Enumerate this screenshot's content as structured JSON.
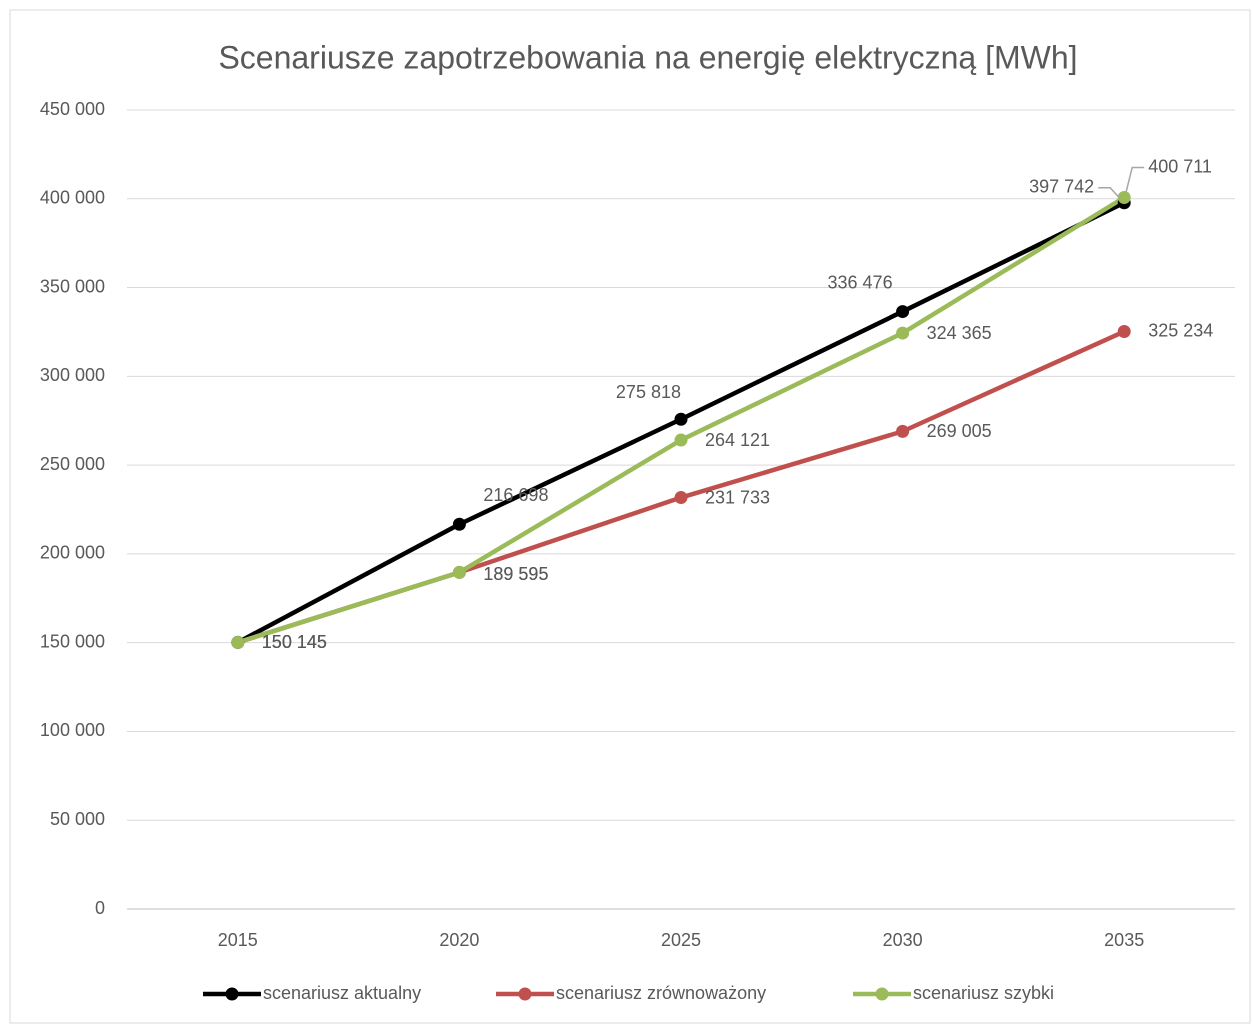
{
  "chart_data": {
    "type": "line",
    "title": "Scenariusze zapotrzebowania na energię elektryczną [MWh]",
    "categories": [
      "2015",
      "2020",
      "2025",
      "2030",
      "2035"
    ],
    "series": [
      {
        "name": "scenariusz aktualny",
        "color": "#000000",
        "values": [
          150145,
          216698,
          275818,
          336476,
          397742
        ],
        "value_labels": [
          "150 145",
          "216 698",
          "275 818",
          "336 476",
          "397 742"
        ]
      },
      {
        "name": "scenariusz zrównoważony",
        "color": "#c0504d",
        "values": [
          150145,
          189595,
          231733,
          269005,
          325234
        ],
        "value_labels": [
          "150 145",
          "189 595",
          "231 733",
          "269 005",
          "325 234"
        ]
      },
      {
        "name": "scenariusz szybki",
        "color": "#9bbb59",
        "values": [
          150145,
          189595,
          264121,
          324365,
          400711
        ],
        "value_labels": [
          "150 145",
          "189 595",
          "264 121",
          "324 365",
          "400 711"
        ]
      }
    ],
    "ylim": [
      0,
      450000
    ],
    "yticks": [
      {
        "value": 0,
        "label": "0"
      },
      {
        "value": 50000,
        "label": "50 000"
      },
      {
        "value": 100000,
        "label": "100 000"
      },
      {
        "value": 150000,
        "label": "150 000"
      },
      {
        "value": 200000,
        "label": "200 000"
      },
      {
        "value": 250000,
        "label": "250 000"
      },
      {
        "value": 300000,
        "label": "300 000"
      },
      {
        "value": 350000,
        "label": "350 000"
      },
      {
        "value": 400000,
        "label": "400 000"
      },
      {
        "value": 450000,
        "label": "450 000"
      }
    ],
    "grid": true,
    "legend": "bottom"
  }
}
